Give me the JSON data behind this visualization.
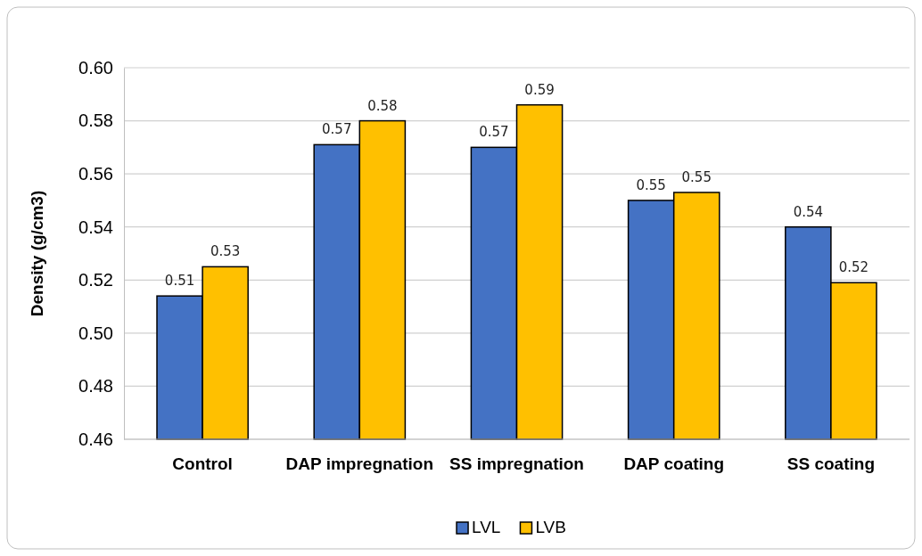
{
  "chart_data": {
    "type": "bar",
    "ylabel": "Density (g/cm3)",
    "categories": [
      "Control",
      "DAP impregnation",
      "SS impregnation",
      "DAP coating",
      "SS coating"
    ],
    "series": [
      {
        "name": "LVL",
        "color": "#4472c4",
        "values": [
          0.514,
          0.571,
          0.57,
          0.55,
          0.54
        ],
        "value_labels": [
          "0.51",
          "0.57",
          "0.57",
          "0.55",
          "0.54"
        ]
      },
      {
        "name": "LVB",
        "color": "#ffc000",
        "values": [
          0.525,
          0.58,
          0.586,
          0.553,
          0.519
        ],
        "value_labels": [
          "0.53",
          "0.58",
          "0.59",
          "0.55",
          "0.52"
        ]
      }
    ],
    "ylim": [
      0.46,
      0.6
    ],
    "yticks": [
      {
        "value": 0.46,
        "label": "0.46"
      },
      {
        "value": 0.48,
        "label": "0.48"
      },
      {
        "value": 0.5,
        "label": "0.50"
      },
      {
        "value": 0.52,
        "label": "0.52"
      },
      {
        "value": 0.54,
        "label": "0.54"
      },
      {
        "value": 0.56,
        "label": "0.56"
      },
      {
        "value": 0.58,
        "label": "0.58"
      },
      {
        "value": 0.6,
        "label": "0.60"
      }
    ],
    "grid": "y",
    "legend": "bottom"
  }
}
